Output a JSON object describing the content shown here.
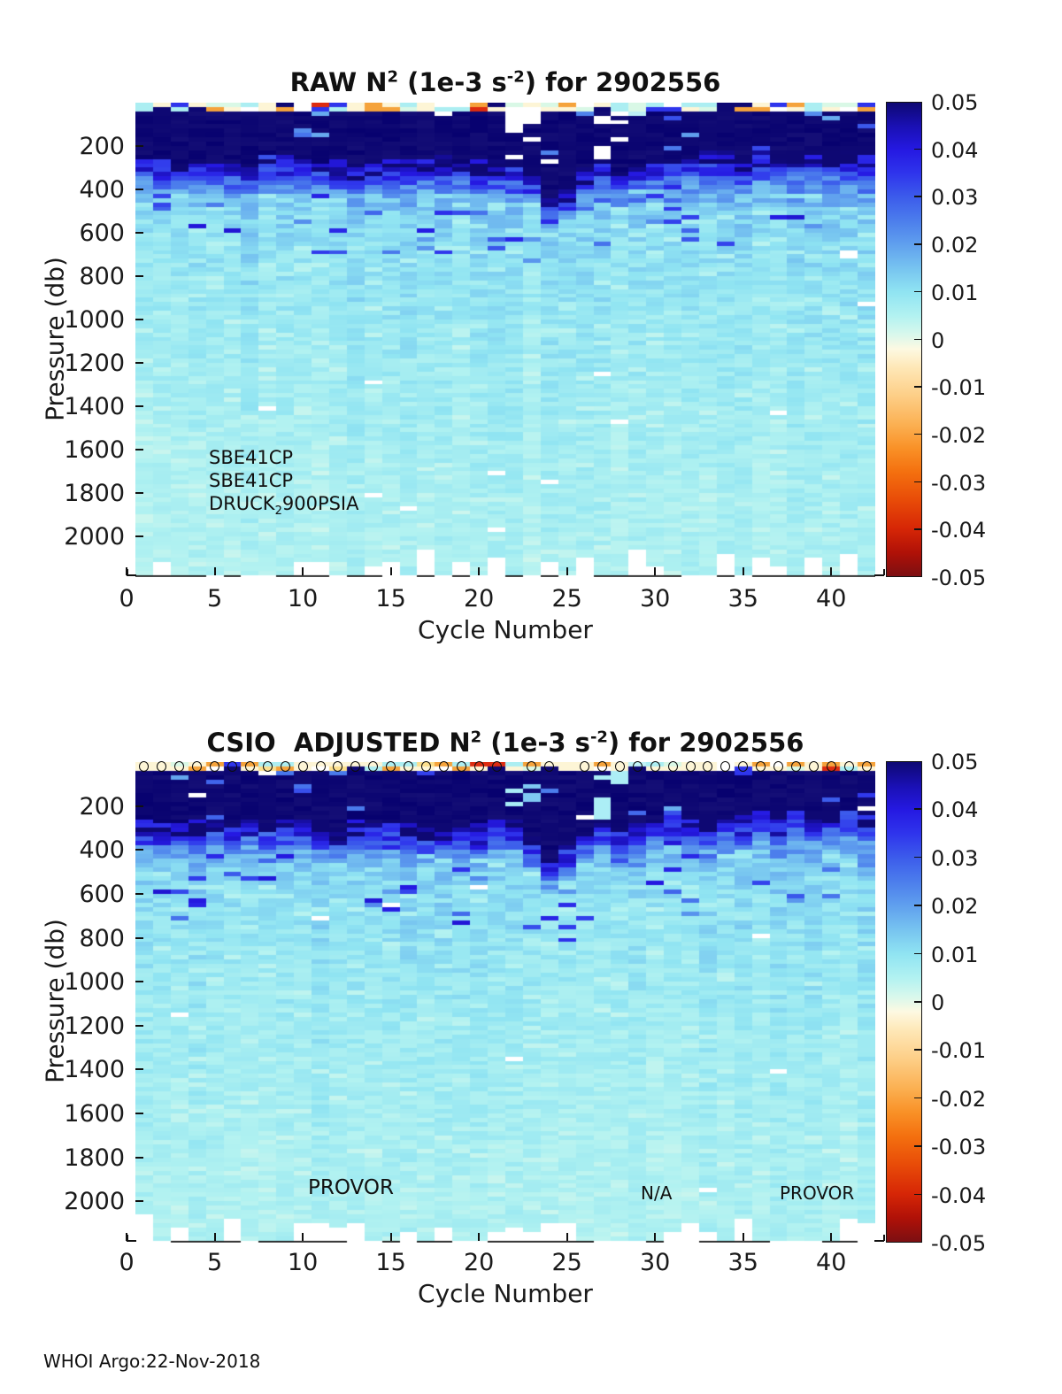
{
  "footer": "WHOI Argo:22-Nov-2018",
  "chart_data": [
    {
      "type": "heatmap",
      "title_parts": [
        "RAW N",
        "2",
        " (1e-3 s",
        "-2",
        ") for 2902556"
      ],
      "xlabel": "Cycle Number",
      "ylabel": "Pressure (db)",
      "xlim": [
        0,
        42.5
      ],
      "ylim_db": [
        0,
        2180
      ],
      "y_axis_inverted": true,
      "grid": false,
      "xticks": [
        0,
        5,
        10,
        15,
        20,
        25,
        30,
        35,
        40
      ],
      "yticks": [
        200,
        400,
        600,
        800,
        1000,
        1200,
        1400,
        1600,
        1800,
        2000
      ],
      "colorbar": {
        "position": "right",
        "vmin": -0.05,
        "vmax": 0.05,
        "ticks": [
          "0.05",
          "0.04",
          "0.03",
          "0.02",
          "0.01",
          "0",
          "-0.01",
          "-0.02",
          "-0.03",
          "-0.04",
          "-0.05"
        ],
        "stops": [
          [
            0,
            "#0e0873"
          ],
          [
            0.05,
            "#1a10b4"
          ],
          [
            0.1,
            "#2519e2"
          ],
          [
            0.15,
            "#2f35ec"
          ],
          [
            0.2,
            "#3c5ceb"
          ],
          [
            0.25,
            "#4c7eec"
          ],
          [
            0.3,
            "#60a0ee"
          ],
          [
            0.35,
            "#77c4f0"
          ],
          [
            0.4,
            "#90e4f2"
          ],
          [
            0.45,
            "#b2f2f1"
          ],
          [
            0.49,
            "#d9f8ec"
          ],
          [
            0.52,
            "#fdf9e2"
          ],
          [
            0.56,
            "#fee7b6"
          ],
          [
            0.62,
            "#fdce86"
          ],
          [
            0.68,
            "#fbb052"
          ],
          [
            0.73,
            "#f99127"
          ],
          [
            0.78,
            "#f4700f"
          ],
          [
            0.84,
            "#e84b08"
          ],
          [
            0.9,
            "#d62606"
          ],
          [
            0.95,
            "#b01107"
          ],
          [
            1,
            "#7c0f12"
          ]
        ]
      },
      "annotations": [
        {
          "text": "SBE41CP"
        },
        {
          "text": "SBE41CP"
        },
        {
          "text_parts": [
            "DRUCK",
            "2",
            "900PSIA"
          ]
        }
      ],
      "field": {
        "n_cycles": 42,
        "depth_step_db": 20,
        "value_units": "1e-3 s^-2",
        "mixed_layer_value": 0.05,
        "mld_by_cycle": [
          265,
          275,
          260,
          250,
          265,
          275,
          255,
          268,
          252,
          262,
          272,
          285,
          268,
          262,
          252,
          258,
          272,
          265,
          282,
          272,
          258,
          238,
          345,
          430,
          385,
          300,
          262,
          325,
          285,
          252,
          242,
          232,
          236,
          230,
          226,
          230,
          224,
          220,
          216,
          220,
          212,
          206
        ],
        "background_profile": [
          [
            300,
            0.028
          ],
          [
            350,
            0.022
          ],
          [
            400,
            0.019
          ],
          [
            500,
            0.013
          ],
          [
            600,
            0.0115
          ],
          [
            700,
            0.0105
          ],
          [
            800,
            0.0098
          ],
          [
            1000,
            0.0088
          ],
          [
            1200,
            0.008
          ],
          [
            1400,
            0.0073
          ],
          [
            1600,
            0.0068
          ],
          [
            1800,
            0.0063
          ],
          [
            2000,
            0.006
          ],
          [
            2180,
            0.0058
          ]
        ],
        "surface_palette": [
          [
            "#fdf5d6",
            0.26
          ],
          [
            "#ffffff",
            0.12
          ],
          [
            "#aceef2",
            0.15
          ],
          [
            "#f5a33c",
            0.12
          ],
          [
            "#0e0873",
            0.13
          ],
          [
            "#2f35ec",
            0.06
          ],
          [
            "#d9f8e6",
            0.08
          ],
          [
            "#dd2c10",
            0.04
          ],
          [
            "#fcdf8d",
            0.04
          ]
        ],
        "gaps": [
          [
            21,
            30,
            130,
            0.7,
            "#ffffff"
          ],
          [
            21,
            130,
            260,
            0.35,
            "#ffffff"
          ],
          [
            22,
            30,
            230,
            0.45,
            "#ffffff"
          ],
          [
            26,
            50,
            280,
            0.5,
            "#ffffff"
          ],
          [
            27,
            40,
            180,
            0.35,
            "#ffffff"
          ],
          [
            17,
            0,
            70,
            0.3,
            "#ffffff"
          ],
          [
            28,
            40,
            120,
            0.3,
            "#bdeef6"
          ]
        ],
        "bottom_nan_p": 0.42,
        "seed": 7
      }
    },
    {
      "type": "heatmap",
      "title_parts": [
        "CSIO  ADJUSTED N",
        "2",
        " (1e-3 s",
        "-2",
        ") for 2902556"
      ],
      "xlabel": "Cycle Number",
      "ylabel": "Pressure (db)",
      "xlim": [
        0,
        42.5
      ],
      "ylim_db": [
        0,
        2180
      ],
      "y_axis_inverted": true,
      "grid": false,
      "xticks": [
        0,
        5,
        10,
        15,
        20,
        25,
        30,
        35,
        40
      ],
      "yticks": [
        200,
        400,
        600,
        800,
        1000,
        1200,
        1400,
        1600,
        1800,
        2000
      ],
      "colorbar": {
        "position": "right",
        "vmin": -0.05,
        "vmax": 0.05,
        "ticks": [
          "0.05",
          "0.04",
          "0.03",
          "0.02",
          "0.01",
          "0",
          "-0.01",
          "-0.02",
          "-0.03",
          "-0.04",
          "-0.05"
        ],
        "stops": [
          [
            0,
            "#0e0873"
          ],
          [
            0.05,
            "#1a10b4"
          ],
          [
            0.1,
            "#2519e2"
          ],
          [
            0.15,
            "#2f35ec"
          ],
          [
            0.2,
            "#3c5ceb"
          ],
          [
            0.25,
            "#4c7eec"
          ],
          [
            0.3,
            "#60a0ee"
          ],
          [
            0.35,
            "#77c4f0"
          ],
          [
            0.4,
            "#90e4f2"
          ],
          [
            0.45,
            "#b2f2f1"
          ],
          [
            0.49,
            "#d9f8ec"
          ],
          [
            0.52,
            "#fdf9e2"
          ],
          [
            0.56,
            "#fee7b6"
          ],
          [
            0.62,
            "#fdce86"
          ],
          [
            0.68,
            "#fbb052"
          ],
          [
            0.73,
            "#f99127"
          ],
          [
            0.78,
            "#f4700f"
          ],
          [
            0.84,
            "#e84b08"
          ],
          [
            0.9,
            "#d62606"
          ],
          [
            0.95,
            "#b01107"
          ],
          [
            1,
            "#7c0f12"
          ]
        ]
      },
      "annotations": [
        {
          "text": "PROVOR"
        },
        {
          "text": "N/A"
        },
        {
          "text": "PROVOR"
        }
      ],
      "markers": {
        "symbol": "o",
        "depth_db": 0,
        "present_cycles": [
          1,
          2,
          3,
          4,
          5,
          6,
          7,
          8,
          9,
          10,
          11,
          12,
          13,
          14,
          15,
          16,
          17,
          18,
          19,
          20,
          21,
          23,
          24,
          26,
          27,
          28,
          29,
          30,
          31,
          32,
          33,
          34,
          35,
          36,
          37,
          38,
          39,
          40,
          41,
          42
        ]
      },
      "field": {
        "n_cycles": 42,
        "depth_step_db": 20,
        "value_units": "1e-3 s^-2",
        "mixed_layer_value": 0.05,
        "mld_by_cycle": [
          270,
          280,
          265,
          258,
          270,
          280,
          262,
          272,
          258,
          268,
          278,
          290,
          272,
          268,
          258,
          264,
          278,
          270,
          288,
          278,
          264,
          244,
          350,
          435,
          390,
          305,
          268,
          330,
          290,
          258,
          248,
          238,
          242,
          236,
          230,
          234,
          228,
          224,
          220,
          224,
          216,
          210
        ],
        "background_profile": [
          [
            300,
            0.028
          ],
          [
            350,
            0.022
          ],
          [
            400,
            0.019
          ],
          [
            500,
            0.013
          ],
          [
            600,
            0.0115
          ],
          [
            700,
            0.0105
          ],
          [
            800,
            0.0098
          ],
          [
            1000,
            0.0088
          ],
          [
            1200,
            0.008
          ],
          [
            1400,
            0.0073
          ],
          [
            1600,
            0.0068
          ],
          [
            1800,
            0.0063
          ],
          [
            2000,
            0.006
          ],
          [
            2180,
            0.0058
          ]
        ],
        "surface_palette": [
          [
            "#fdf5d6",
            0.4
          ],
          [
            "#ffffff",
            0.08
          ],
          [
            "#aceef2",
            0.13
          ],
          [
            "#f5a33c",
            0.15
          ],
          [
            "#0e0873",
            0.08
          ],
          [
            "#2f35ec",
            0.04
          ],
          [
            "#d9f8e6",
            0.06
          ],
          [
            "#dd2c10",
            0.02
          ],
          [
            "#fcdf8d",
            0.04
          ]
        ],
        "gaps": [
          [
            21,
            60,
            220,
            0.45,
            "#a8ecf6"
          ],
          [
            22,
            100,
            200,
            0.5,
            "#7fc8f2"
          ],
          [
            26,
            20,
            260,
            0.55,
            "#aceef6"
          ],
          [
            27,
            20,
            150,
            0.4,
            "#aceef6"
          ],
          [
            28,
            0,
            100,
            0.35,
            "#c2f4f8"
          ]
        ],
        "bottom_nan_p": 0.42,
        "seed": 13
      }
    }
  ]
}
